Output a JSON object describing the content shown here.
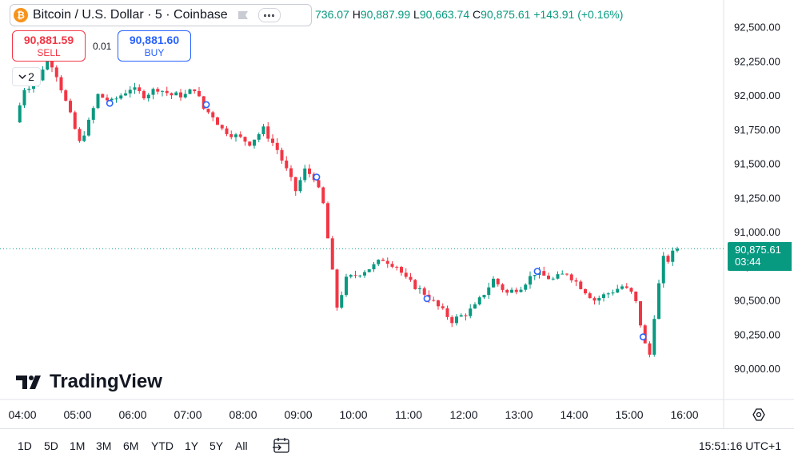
{
  "header": {
    "title": "Bitcoin / U.S. Dollar · 5 · Coinbase",
    "logo_glyph": "₿",
    "ohlc": {
      "open_partial": "736.07",
      "h_label": "H",
      "high": "90,887.99",
      "l_label": "L",
      "low": "90,663.74",
      "c_label": "C",
      "close": "90,875.61",
      "change": "+143.91 (+0.16%)"
    }
  },
  "trade": {
    "sell_price": "90,881.59",
    "sell_label": "SELL",
    "spread": "0.01",
    "buy_price": "90,881.60",
    "buy_label": "BUY"
  },
  "indicators_collapse": {
    "count": "2"
  },
  "branding": {
    "logo_text": "TradingView"
  },
  "price_tag": {
    "price": "90,875.61",
    "countdown": "03:44"
  },
  "bottom_bar": {
    "ranges": [
      "1D",
      "5D",
      "1M",
      "3M",
      "6M",
      "YTD",
      "1Y",
      "5Y",
      "All"
    ],
    "clock": "15:51:16 UTC+1"
  },
  "colors": {
    "up": "#089981",
    "down": "#f23645",
    "marker": "#2962ff"
  },
  "chart_data": {
    "type": "candlestick",
    "interval": "5m",
    "ylim": [
      89850,
      92600
    ],
    "xlim": [
      "04:00",
      "16:20"
    ],
    "y_ticks": [
      "92,500.00",
      "92,250.00",
      "92,000.00",
      "91,750.00",
      "91,500.00",
      "91,250.00",
      "91,000.00",
      "90,750.00",
      "90,500.00",
      "90,250.00",
      "90,000.00"
    ],
    "y_tick_values": [
      92500,
      92250,
      92000,
      91750,
      91500,
      91250,
      91000,
      90750,
      90500,
      90250,
      90000
    ],
    "x_ticks": [
      "04:00",
      "05:00",
      "06:00",
      "07:00",
      "08:00",
      "09:00",
      "10:00",
      "11:00",
      "12:00",
      "13:00",
      "14:00",
      "15:00",
      "16:00"
    ],
    "current_price": 90875.61,
    "markers": [
      {
        "time": "05:35",
        "price": 91940
      },
      {
        "time": "07:20",
        "price": 91930
      },
      {
        "time": "09:20",
        "price": 91400
      },
      {
        "time": "11:20",
        "price": 90510
      },
      {
        "time": "13:20",
        "price": 90710
      },
      {
        "time": "15:15",
        "price": 90230
      }
    ],
    "waypoints": [
      [
        "03:55",
        91800
      ],
      [
        "04:05",
        92050
      ],
      [
        "04:20",
        92100
      ],
      [
        "04:30",
        92300
      ],
      [
        "04:40",
        92150
      ],
      [
        "04:55",
        91850
      ],
      [
        "05:05",
        91650
      ],
      [
        "05:15",
        91800
      ],
      [
        "05:25",
        92000
      ],
      [
        "05:40",
        91950
      ],
      [
        "05:50",
        92000
      ],
      [
        "06:00",
        92050
      ],
      [
        "06:15",
        92000
      ],
      [
        "06:30",
        92050
      ],
      [
        "06:45",
        92000
      ],
      [
        "07:00",
        92000
      ],
      [
        "07:10",
        92050
      ],
      [
        "07:20",
        91900
      ],
      [
        "07:30",
        91850
      ],
      [
        "07:40",
        91750
      ],
      [
        "07:55",
        91700
      ],
      [
        "08:10",
        91650
      ],
      [
        "08:25",
        91750
      ],
      [
        "08:40",
        91600
      ],
      [
        "08:50",
        91450
      ],
      [
        "09:00",
        91300
      ],
      [
        "09:10",
        91450
      ],
      [
        "09:20",
        91400
      ],
      [
        "09:30",
        91200
      ],
      [
        "09:35",
        90950
      ],
      [
        "09:40",
        90700
      ],
      [
        "09:45",
        90450
      ],
      [
        "09:55",
        90650
      ],
      [
        "10:10",
        90700
      ],
      [
        "10:25",
        90750
      ],
      [
        "10:35",
        90800
      ],
      [
        "10:50",
        90750
      ],
      [
        "11:00",
        90650
      ],
      [
        "11:10",
        90600
      ],
      [
        "11:20",
        90550
      ],
      [
        "11:35",
        90450
      ],
      [
        "11:50",
        90350
      ],
      [
        "12:05",
        90400
      ],
      [
        "12:15",
        90450
      ],
      [
        "12:25",
        90550
      ],
      [
        "12:35",
        90650
      ],
      [
        "12:50",
        90550
      ],
      [
        "13:05",
        90600
      ],
      [
        "13:20",
        90700
      ],
      [
        "13:40",
        90650
      ],
      [
        "13:55",
        90700
      ],
      [
        "14:10",
        90600
      ],
      [
        "14:25",
        90500
      ],
      [
        "14:40",
        90550
      ],
      [
        "14:55",
        90600
      ],
      [
        "15:05",
        90550
      ],
      [
        "15:12",
        90450
      ],
      [
        "15:18",
        90200
      ],
      [
        "15:25",
        90100
      ],
      [
        "15:32",
        90500
      ],
      [
        "15:40",
        90800
      ],
      [
        "15:47",
        90790
      ],
      [
        "15:52",
        90875
      ]
    ]
  }
}
